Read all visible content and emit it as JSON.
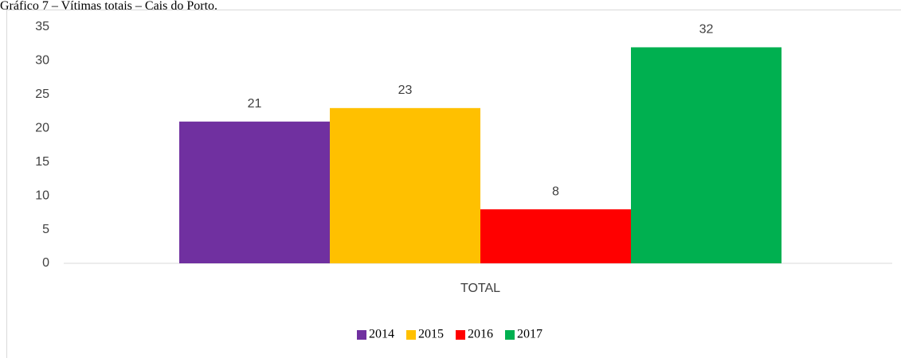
{
  "chart_data": {
    "type": "bar",
    "title": "Gráfico 7 – Vítimas totais – Cais do Porto.",
    "categories": [
      "TOTAL"
    ],
    "series": [
      {
        "name": "2014",
        "color": "#7030a0",
        "values": [
          21
        ]
      },
      {
        "name": "2015",
        "color": "#ffc000",
        "values": [
          23
        ]
      },
      {
        "name": "2016",
        "color": "#ff0000",
        "values": [
          8
        ]
      },
      {
        "name": "2017",
        "color": "#00b050",
        "values": [
          32
        ]
      }
    ],
    "ylim": [
      0,
      35
    ],
    "yticks": [
      0,
      5,
      10,
      15,
      20,
      25,
      30,
      35
    ],
    "grid": false,
    "legend": "bottom"
  }
}
